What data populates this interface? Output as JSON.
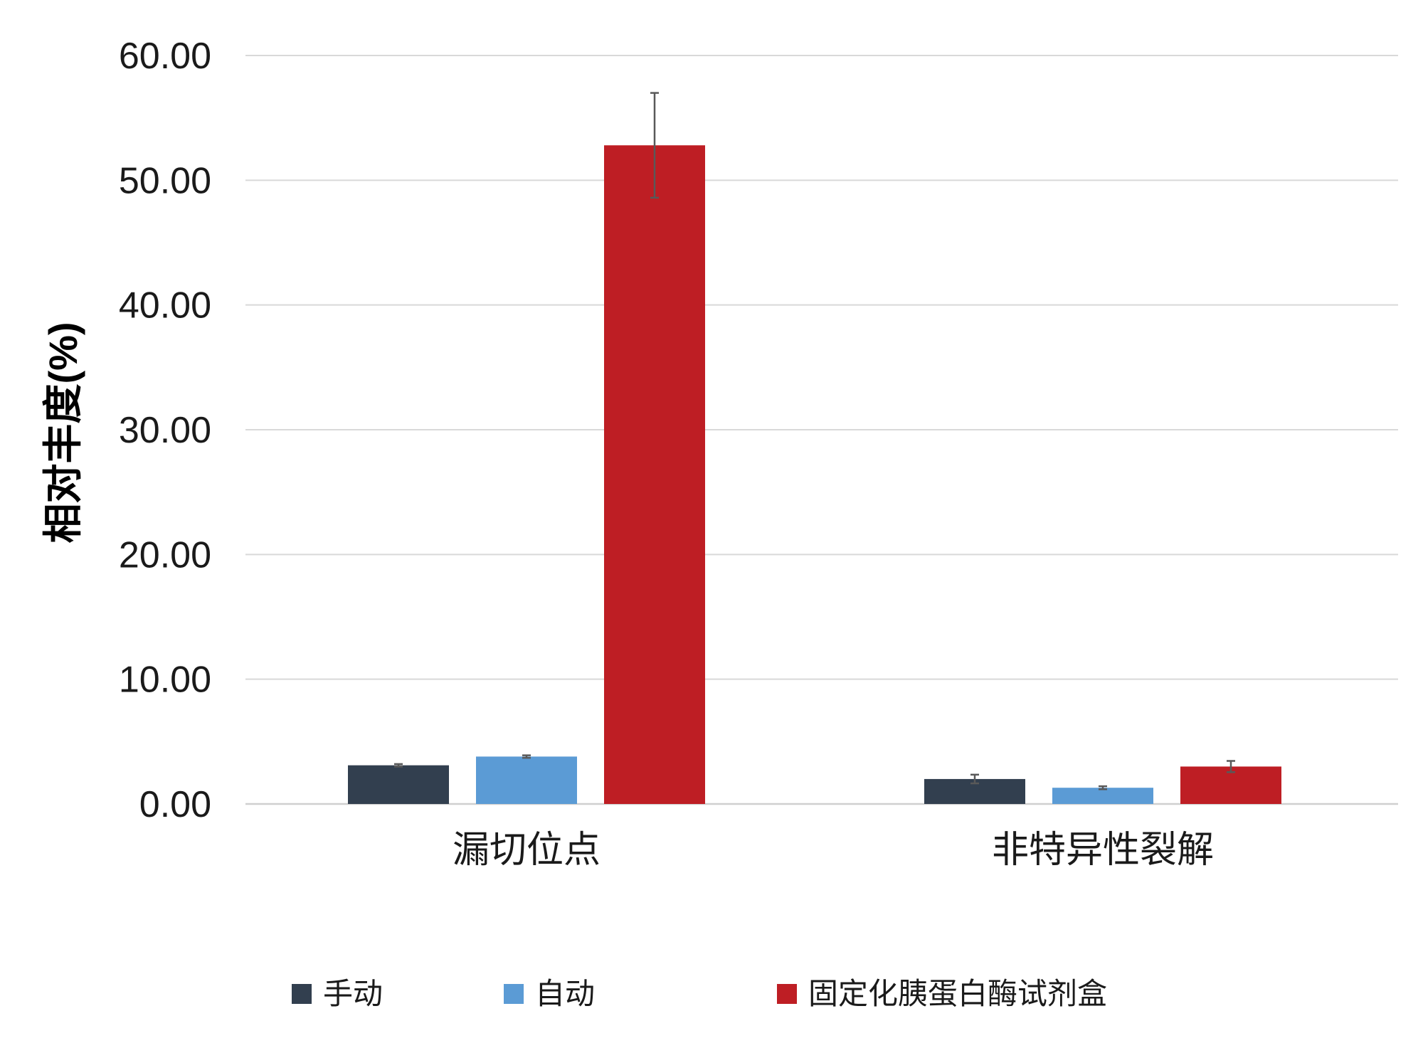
{
  "chart_data": {
    "type": "bar",
    "title": "",
    "ylabel": "相对丰度(%)",
    "xlabel": "",
    "ylim": [
      0,
      60
    ],
    "y_ticks": [
      "0.00",
      "10.00",
      "20.00",
      "30.00",
      "40.00",
      "50.00",
      "60.00"
    ],
    "categories": [
      "漏切位点",
      "非特异性裂解"
    ],
    "series": [
      {
        "name": "手动",
        "color": "#323f4f",
        "values": [
          3.1,
          2.0
        ],
        "errors": [
          0.1,
          0.35
        ]
      },
      {
        "name": "自动",
        "color": "#5b9bd5",
        "values": [
          3.8,
          1.3
        ],
        "errors": [
          0.1,
          0.12
        ]
      },
      {
        "name": "固定化胰蛋白酶试剂盒",
        "color": "#be1e24",
        "values": [
          52.8,
          3.0
        ],
        "errors": [
          4.2,
          0.45
        ]
      }
    ],
    "grid": true,
    "legend_position": "bottom"
  }
}
